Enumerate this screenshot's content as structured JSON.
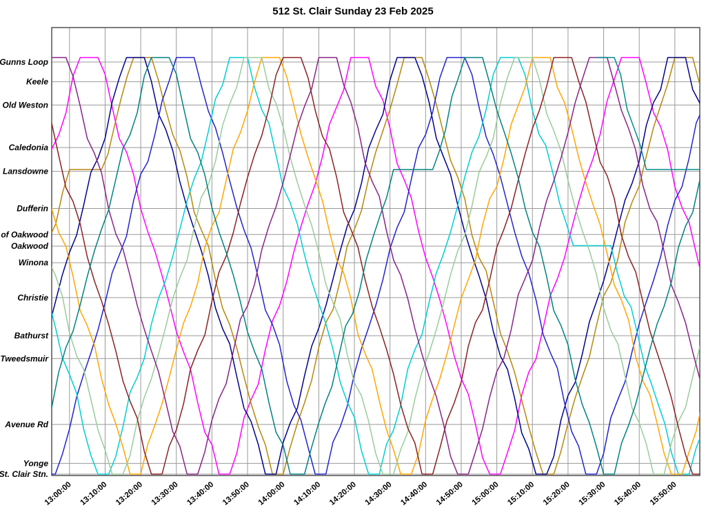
{
  "title": "512 St. Clair Sunday 23 Feb 2025",
  "chart_data": {
    "type": "line",
    "title": "512 St. Clair Sunday 23 Feb 2025",
    "description": "Time-distance (string) chart of streetcar trips between St. Clair Station and Gunns Loop",
    "grid": true,
    "x_axis": {
      "unit": "time of day",
      "tick_interval_minutes": 10,
      "t_start_minutes": -5,
      "t_end_minutes": 177,
      "tick_labels": [
        "13:00:00",
        "13:10:00",
        "13:20:00",
        "13:30:00",
        "13:40:00",
        "13:50:00",
        "14:00:00",
        "14:10:00",
        "14:20:00",
        "14:30:00",
        "14:40:00",
        "14:50:00",
        "15:00:00",
        "15:10:00",
        "15:20:00",
        "15:30:00",
        "15:40:00",
        "15:50:00"
      ]
    },
    "y_axis": {
      "unit": "position along route (0 = St. Clair Stn., 93 = Gunns Loop)",
      "stations": [
        {
          "name": "Gunns Loop",
          "pos": 92.0
        },
        {
          "name": "Keele",
          "pos": 87.6
        },
        {
          "name": "Old Weston",
          "pos": 82.4
        },
        {
          "name": "Caledonia",
          "pos": 72.9
        },
        {
          "name": "Lansdowne",
          "pos": 67.6
        },
        {
          "name": "Dufferin",
          "pos": 59.3
        },
        {
          "name": "W of Oakwood",
          "pos": 53.5
        },
        {
          "name": "Oakwood",
          "pos": 50.9
        },
        {
          "name": "Winona",
          "pos": 47.2
        },
        {
          "name": "Christie",
          "pos": 39.4
        },
        {
          "name": "Bathurst",
          "pos": 30.9
        },
        {
          "name": "Tweedsmuir",
          "pos": 25.8
        },
        {
          "name": "Avenue Rd",
          "pos": 11.1
        },
        {
          "name": "Yonge",
          "pos": 2.4
        },
        {
          "name": "St. Clair Stn.",
          "pos": 0.0
        }
      ]
    },
    "series": [
      {
        "name": "run-1-magenta",
        "color": "#FF00FF",
        "waypoints": [
          [
            -34,
            0
          ],
          [
            -31,
            0
          ],
          [
            3,
            93
          ],
          [
            8,
            93
          ],
          [
            42,
            0
          ],
          [
            45,
            0
          ],
          [
            79,
            93
          ],
          [
            84,
            93
          ],
          [
            118,
            0
          ],
          [
            121,
            0
          ],
          [
            155,
            93
          ],
          [
            160,
            93
          ],
          [
            194,
            0
          ]
        ]
      },
      {
        "name": "run-2-olive",
        "color": "#B8860B",
        "waypoints": [
          [
            -28,
            0
          ],
          [
            -25,
            0
          ],
          [
            0,
            68
          ],
          [
            9,
            68
          ],
          [
            18,
            93
          ],
          [
            23,
            93
          ],
          [
            57,
            0
          ],
          [
            60,
            0
          ],
          [
            94,
            93
          ],
          [
            99,
            93
          ],
          [
            133,
            0
          ],
          [
            136,
            0
          ],
          [
            170,
            93
          ],
          [
            175,
            93
          ],
          [
            209,
            0
          ]
        ]
      },
      {
        "name": "run-3-navy",
        "color": "#00008B",
        "waypoints": [
          [
            -21,
            0
          ],
          [
            -18,
            0
          ],
          [
            16,
            93
          ],
          [
            21,
            93
          ],
          [
            55,
            0
          ],
          [
            58,
            0
          ],
          [
            92,
            93
          ],
          [
            97,
            93
          ],
          [
            131,
            0
          ],
          [
            134,
            0
          ],
          [
            168,
            93
          ],
          [
            173,
            93
          ],
          [
            207,
            0
          ]
        ]
      },
      {
        "name": "run-4-blue",
        "color": "#2222CC",
        "waypoints": [
          [
            -7,
            0
          ],
          [
            -4,
            0
          ],
          [
            30,
            93
          ],
          [
            35,
            93
          ],
          [
            69,
            0
          ],
          [
            72,
            0
          ],
          [
            106,
            93
          ],
          [
            111,
            93
          ],
          [
            145,
            0
          ],
          [
            148,
            0
          ],
          [
            182,
            93
          ],
          [
            187,
            93
          ]
        ]
      },
      {
        "name": "run-5-cyan",
        "color": "#00CDD6",
        "waypoints": [
          [
            -31,
            93
          ],
          [
            -26,
            93
          ],
          [
            8,
            0
          ],
          [
            11,
            0
          ],
          [
            45,
            93
          ],
          [
            50,
            93
          ],
          [
            84,
            0
          ],
          [
            87,
            0
          ],
          [
            121,
            93
          ],
          [
            126,
            93
          ],
          [
            141.5,
            51
          ],
          [
            152,
            51
          ],
          [
            171,
            0
          ],
          [
            174,
            0
          ],
          [
            208,
            93
          ]
        ]
      },
      {
        "name": "run-6-orange",
        "color": "#FFA500",
        "waypoints": [
          [
            -22,
            93
          ],
          [
            -17,
            93
          ],
          [
            17,
            0
          ],
          [
            20,
            0
          ],
          [
            54,
            93
          ],
          [
            59,
            93
          ],
          [
            93,
            0
          ],
          [
            96,
            0
          ],
          [
            130,
            93
          ],
          [
            135,
            93
          ],
          [
            169,
            0
          ],
          [
            172,
            0
          ],
          [
            206,
            93
          ]
        ]
      },
      {
        "name": "run-7-palegreen",
        "color": "#99CC99",
        "waypoints": [
          [
            -27,
            93
          ],
          [
            -22,
            93
          ],
          [
            12,
            0
          ],
          [
            15,
            0
          ],
          [
            49,
            93
          ],
          [
            54,
            93
          ],
          [
            88,
            0
          ],
          [
            91,
            0
          ],
          [
            125,
            93
          ],
          [
            130,
            93
          ],
          [
            164,
            0
          ],
          [
            167,
            0
          ],
          [
            201,
            93
          ]
        ]
      },
      {
        "name": "run-8-maroon",
        "color": "#8B2020",
        "waypoints": [
          [
            -16,
            93
          ],
          [
            -11,
            93
          ],
          [
            23,
            0
          ],
          [
            26,
            0
          ],
          [
            60,
            93
          ],
          [
            65,
            93
          ],
          [
            99,
            0
          ],
          [
            102,
            0
          ],
          [
            136,
            93
          ],
          [
            141,
            93
          ],
          [
            175,
            0
          ],
          [
            178,
            0
          ]
        ]
      },
      {
        "name": "run-9-purple",
        "color": "#882288",
        "waypoints": [
          [
            -6,
            93
          ],
          [
            -1,
            93
          ],
          [
            33,
            0
          ],
          [
            36,
            0
          ],
          [
            70,
            93
          ],
          [
            75,
            93
          ],
          [
            109,
            0
          ],
          [
            112,
            0
          ],
          [
            146,
            93
          ],
          [
            151,
            93
          ],
          [
            185,
            0
          ]
        ]
      },
      {
        "name": "run-10-teal",
        "color": "#008080",
        "waypoints": [
          [
            -14,
            0
          ],
          [
            -11,
            0
          ],
          [
            23,
            93
          ],
          [
            28,
            93
          ],
          [
            62,
            0
          ],
          [
            66,
            0
          ],
          [
            91,
            68
          ],
          [
            102,
            68
          ],
          [
            111,
            93
          ],
          [
            116,
            93
          ],
          [
            150,
            0
          ],
          [
            153,
            0
          ],
          [
            187,
            93
          ]
        ]
      },
      {
        "name": "run-11-teal",
        "color": "#008B8B",
        "waypoints": [
          [
            148,
            93
          ],
          [
            153,
            93
          ],
          [
            162,
            68
          ],
          [
            177,
            68
          ]
        ]
      }
    ],
    "style": {
      "background": "#ffffff",
      "grid_color": "#999999",
      "frame_color": "#444444",
      "text_color": "#000000"
    }
  }
}
